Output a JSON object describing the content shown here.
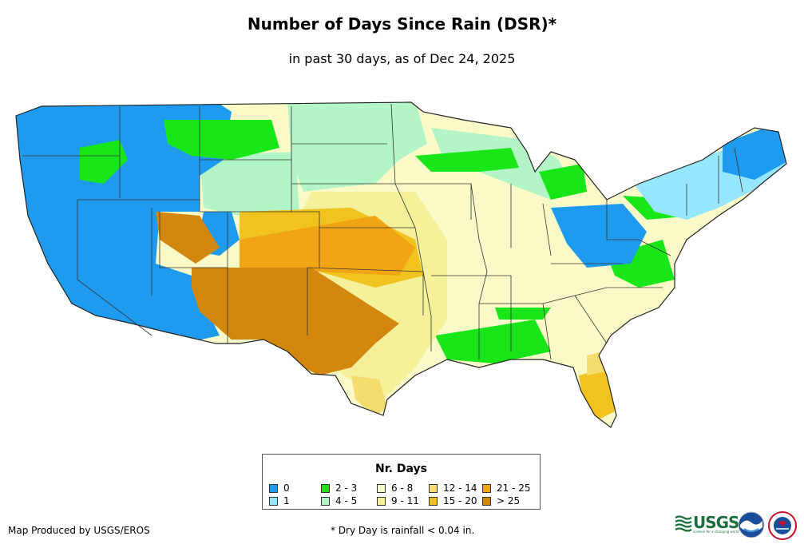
{
  "title": "Number of Days Since Rain (DSR)*",
  "subtitle": "in past 30 days, as of Dec 24, 2025",
  "legend": {
    "title": "Nr. Days",
    "items": [
      {
        "label": "0",
        "color": "#1e9bef"
      },
      {
        "label": "1",
        "color": "#96e6ff"
      },
      {
        "label": "2 - 3",
        "color": "#19e619"
      },
      {
        "label": "4 - 5",
        "color": "#b4f5c8"
      },
      {
        "label": "6 - 8",
        "color": "#fafac8"
      },
      {
        "label": "9 - 11",
        "color": "#f5f09a"
      },
      {
        "label": "12 - 14",
        "color": "#f5dc6e"
      },
      {
        "label": "15 - 20",
        "color": "#f0c31e"
      },
      {
        "label": "21 - 25",
        "color": "#f0a514"
      },
      {
        "label": "> 25",
        "color": "#d2870f"
      }
    ]
  },
  "footer": {
    "producer": "Map Produced by USGS/EROS",
    "note": "* Dry Day is rainfall < 0.04 in."
  },
  "logos": {
    "usgs": "USGS",
    "usgs_tagline": "science for a changing world",
    "noaa_icon": "noaa-logo",
    "nws_icon": "nws-logo"
  }
}
